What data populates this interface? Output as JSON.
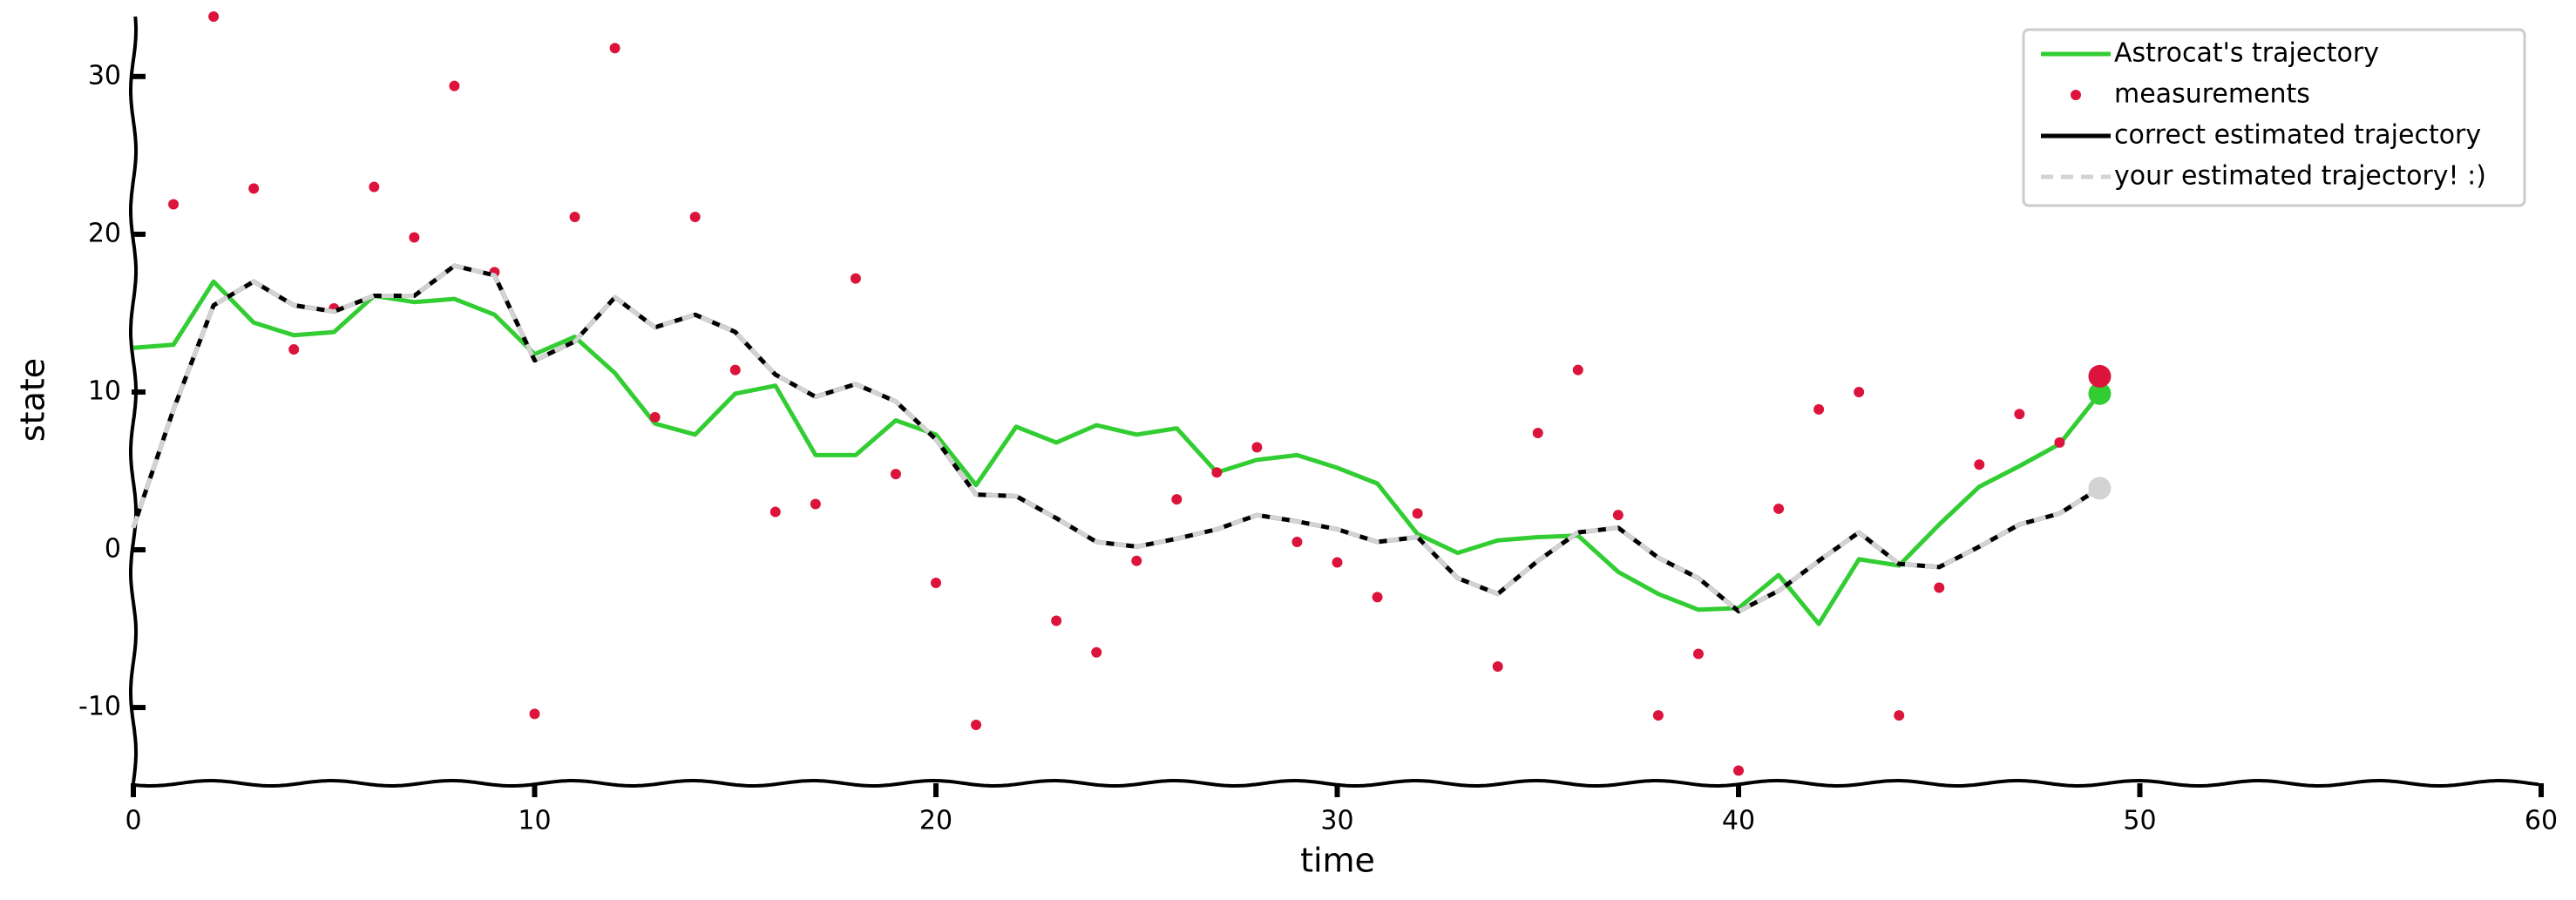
{
  "chart_data": {
    "type": "line",
    "xlabel": "time",
    "ylabel": "state",
    "x": [
      0,
      1,
      2,
      3,
      4,
      5,
      6,
      7,
      8,
      9,
      10,
      11,
      12,
      13,
      14,
      15,
      16,
      17,
      18,
      19,
      20,
      21,
      22,
      23,
      24,
      25,
      26,
      27,
      28,
      29,
      30,
      31,
      32,
      33,
      34,
      35,
      36,
      37,
      38,
      39,
      40,
      41,
      42,
      43,
      44,
      45,
      46,
      47,
      48,
      49
    ],
    "xlim": [
      0,
      60
    ],
    "xticks": [
      0,
      10,
      20,
      30,
      40,
      50,
      60
    ],
    "ylim": [
      -14.8,
      33.8
    ],
    "yticks": [
      -10,
      0,
      10,
      20,
      30
    ],
    "legend": "upper right",
    "series": [
      {
        "name": "Astrocat's trajectory",
        "color": "#32cd32",
        "style": "line",
        "end_marker": true,
        "values": [
          12.8,
          13.0,
          17.0,
          14.4,
          13.6,
          13.8,
          16.1,
          15.7,
          15.9,
          14.9,
          12.4,
          13.5,
          11.2,
          8.0,
          7.3,
          9.9,
          10.4,
          6.0,
          6.0,
          8.2,
          7.3,
          4.1,
          7.8,
          6.8,
          7.9,
          7.3,
          7.7,
          4.9,
          5.7,
          6.0,
          5.2,
          4.2,
          1.0,
          -0.2,
          0.6,
          0.8,
          0.9,
          -1.4,
          -2.8,
          -3.8,
          -3.7,
          -1.6,
          -4.7,
          -0.6,
          -1.0,
          1.6,
          4.0,
          5.3,
          6.7,
          9.9
        ]
      },
      {
        "name": "measurements",
        "color": "#dc143c",
        "style": "points",
        "end_marker": true,
        "values": [
          null,
          21.9,
          33.8,
          22.9,
          12.7,
          15.3,
          23.0,
          19.8,
          29.4,
          17.6,
          -10.4,
          21.1,
          31.8,
          8.4,
          21.1,
          11.4,
          2.4,
          2.9,
          17.2,
          4.8,
          -2.1,
          -11.1,
          null,
          -4.5,
          -6.5,
          -0.7,
          3.2,
          4.9,
          6.5,
          0.5,
          -0.8,
          -3.0,
          2.3,
          null,
          -7.4,
          7.4,
          11.4,
          2.2,
          -10.5,
          -6.6,
          -14.0,
          2.6,
          8.9,
          10.0,
          -10.5,
          -2.4,
          5.4,
          8.6,
          6.8,
          11.0
        ]
      },
      {
        "name": "correct estimated trajectory",
        "color": "#000000",
        "style": "line",
        "end_marker": false,
        "values": [
          1.4,
          8.9,
          15.5,
          17.0,
          15.5,
          15.1,
          16.1,
          16.1,
          18.0,
          17.4,
          12.0,
          13.2,
          16.0,
          14.1,
          14.9,
          13.8,
          11.1,
          9.7,
          10.5,
          9.4,
          7.0,
          3.5,
          3.4,
          2.0,
          0.5,
          0.2,
          0.7,
          1.3,
          2.2,
          1.8,
          1.3,
          0.5,
          0.8,
          -1.8,
          -2.8,
          -0.7,
          1.1,
          1.4,
          -0.5,
          -1.8,
          -3.9,
          -2.6,
          -0.7,
          1.1,
          -0.9,
          -1.1,
          0.2,
          1.6,
          2.3,
          3.9
        ]
      },
      {
        "name": "your estimated trajectory! :)",
        "color": "#d3d3d3",
        "style": "dashed",
        "end_marker": true,
        "values": [
          1.4,
          8.9,
          15.5,
          17.0,
          15.5,
          15.1,
          16.1,
          16.1,
          18.0,
          17.4,
          12.0,
          13.2,
          16.0,
          14.1,
          14.9,
          13.8,
          11.1,
          9.7,
          10.5,
          9.4,
          7.0,
          3.5,
          3.4,
          2.0,
          0.5,
          0.2,
          0.7,
          1.3,
          2.2,
          1.8,
          1.3,
          0.5,
          0.8,
          -1.8,
          -2.8,
          -0.7,
          1.1,
          1.4,
          -0.5,
          -1.8,
          -3.9,
          -2.6,
          -0.7,
          1.1,
          -0.9,
          -1.1,
          0.2,
          1.6,
          2.3,
          3.9
        ]
      }
    ]
  }
}
